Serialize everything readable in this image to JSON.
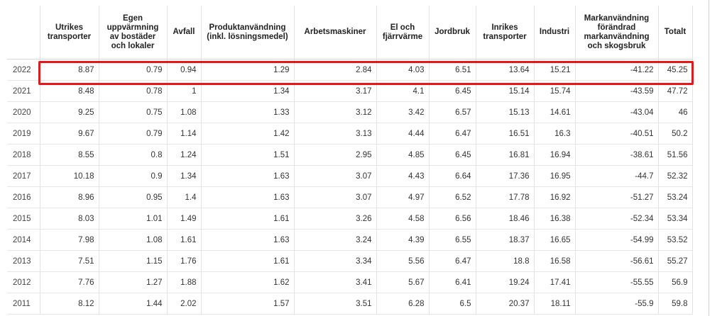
{
  "table": {
    "headers": [
      "",
      "Utrikes transporter",
      "Egen uppvärmning av bostäder och lokaler",
      "Avfall",
      "Produktanvändning (inkl. lösningsmedel)",
      "Arbetsmaskiner",
      "El och fjärrvärme",
      "Jordbruk",
      "Inrikes transporter",
      "Industri",
      "Markanvändning förändrad markanvändning och skogsbruk",
      "Totalt"
    ],
    "rows": [
      [
        "2022",
        "8.87",
        "0.79",
        "0.94",
        "1.29",
        "2.84",
        "4.03",
        "6.51",
        "13.64",
        "15.21",
        "-41.22",
        "45.25"
      ],
      [
        "2021",
        "8.48",
        "0.78",
        "1",
        "1.34",
        "3.17",
        "4.1",
        "6.45",
        "15.14",
        "15.74",
        "-43.59",
        "47.72"
      ],
      [
        "2020",
        "9.25",
        "0.75",
        "1.08",
        "1.33",
        "3.12",
        "3.42",
        "6.57",
        "15.13",
        "14.61",
        "-43.04",
        "46"
      ],
      [
        "2019",
        "9.67",
        "0.79",
        "1.14",
        "1.42",
        "3.13",
        "4.44",
        "6.47",
        "16.51",
        "16.3",
        "-40.51",
        "50.2"
      ],
      [
        "2018",
        "8.55",
        "0.8",
        "1.24",
        "1.51",
        "2.95",
        "4.85",
        "6.45",
        "16.81",
        "16.94",
        "-38.61",
        "51.56"
      ],
      [
        "2017",
        "10.18",
        "0.9",
        "1.34",
        "1.63",
        "3.07",
        "4.43",
        "6.64",
        "17.36",
        "16.95",
        "-44.7",
        "52.32"
      ],
      [
        "2016",
        "8.96",
        "0.95",
        "1.4",
        "1.63",
        "3.07",
        "4.97",
        "6.52",
        "17.78",
        "16.92",
        "-51.27",
        "53.24"
      ],
      [
        "2015",
        "8.03",
        "1.01",
        "1.49",
        "1.61",
        "3.26",
        "4.58",
        "6.56",
        "18.46",
        "16.38",
        "-52.34",
        "53.34"
      ],
      [
        "2014",
        "7.98",
        "1.08",
        "1.61",
        "1.63",
        "3.24",
        "4.39",
        "6.55",
        "18.37",
        "16.65",
        "-54.99",
        "53.52"
      ],
      [
        "2013",
        "7.51",
        "1.15",
        "1.76",
        "1.61",
        "3.34",
        "5.56",
        "6.47",
        "18.8",
        "16.58",
        "-56.61",
        "55.27"
      ],
      [
        "2012",
        "7.76",
        "1.27",
        "1.88",
        "1.62",
        "3.41",
        "5.67",
        "6.41",
        "19.24",
        "17.41",
        "-55.55",
        "56.9"
      ],
      [
        "2011",
        "8.12",
        "1.44",
        "2.02",
        "1.57",
        "3.51",
        "6.28",
        "6.5",
        "20.37",
        "18.11",
        "-55.9",
        "59.8"
      ]
    ],
    "highlighted_year": "2022"
  },
  "colors": {
    "highlight": "#e8151b",
    "grid": "#e3e3e3"
  }
}
